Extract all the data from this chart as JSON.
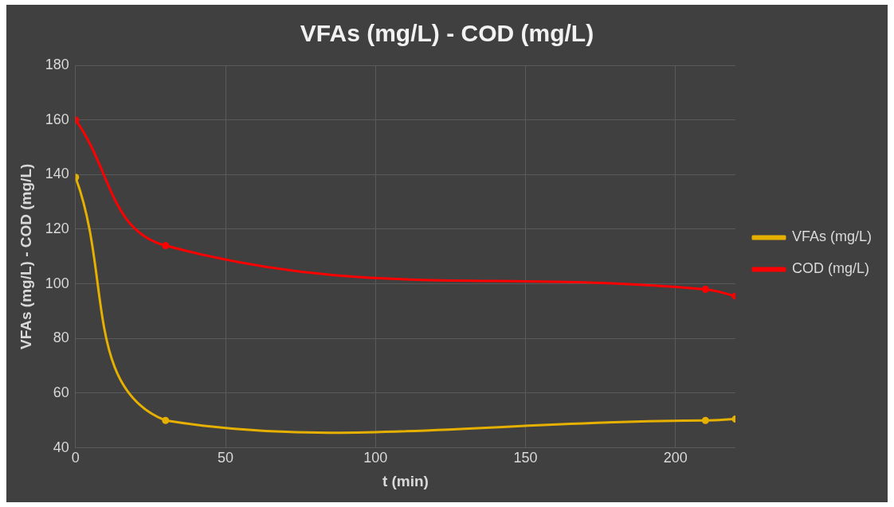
{
  "chart_data": {
    "type": "line",
    "title": "VFAs (mg/L) - COD (mg/L)",
    "xlabel": "t (min)",
    "ylabel": "VFAs (mg/L) - COD (mg/L)",
    "x": [
      0,
      30,
      210,
      220
    ],
    "series": [
      {
        "name": "VFAs (mg/L)",
        "color": "#e6b000",
        "values": [
          139,
          50,
          50,
          50.5
        ]
      },
      {
        "name": "COD (mg/L)",
        "color": "#ff0000",
        "values": [
          160,
          114,
          98,
          95.5
        ]
      }
    ],
    "xlim": [
      0,
      220
    ],
    "xticks": [
      0,
      50,
      100,
      150,
      200
    ],
    "ylim": [
      40,
      180
    ],
    "yticks": [
      40,
      60,
      80,
      100,
      120,
      140,
      160,
      180
    ],
    "grid": true,
    "legend": "right",
    "marker": "circle",
    "line_style": "solid"
  }
}
